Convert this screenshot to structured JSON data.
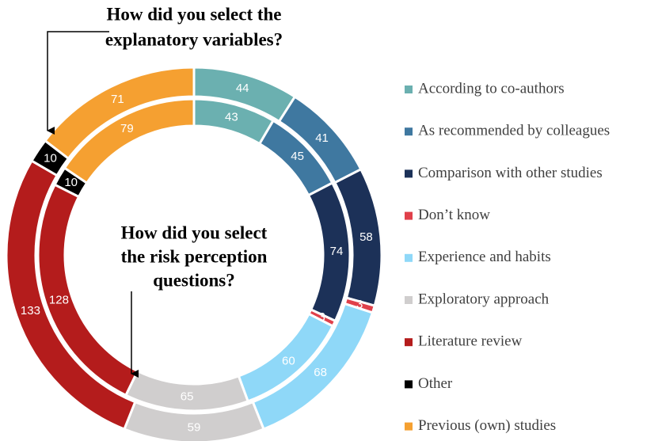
{
  "chart_data": {
    "type": "nested-donut",
    "categories": [
      "According to co-authors",
      "As recommended by colleagues",
      "Comparison with other studies",
      "Don’t know",
      "Experience and habits",
      "Exploratory approach",
      "Literature review",
      "Other",
      "Previous (own) studies"
    ],
    "colors": [
      "#6bb0b0",
      "#3f78a0",
      "#1c3158",
      "#e0404a",
      "#8fd8f8",
      "#d0cece",
      "#b41c1c",
      "#000000",
      "#f5a031"
    ],
    "series": [
      {
        "name": [
          "How did you select the",
          "explanatory variables?"
        ],
        "values": [
          44,
          41,
          58,
          3,
          68,
          59,
          133,
          10,
          71
        ]
      },
      {
        "name": [
          "How did you select",
          "the risk perception",
          "questions?"
        ],
        "values": [
          43,
          45,
          74,
          3,
          60,
          65,
          128,
          10,
          79
        ]
      }
    ]
  }
}
